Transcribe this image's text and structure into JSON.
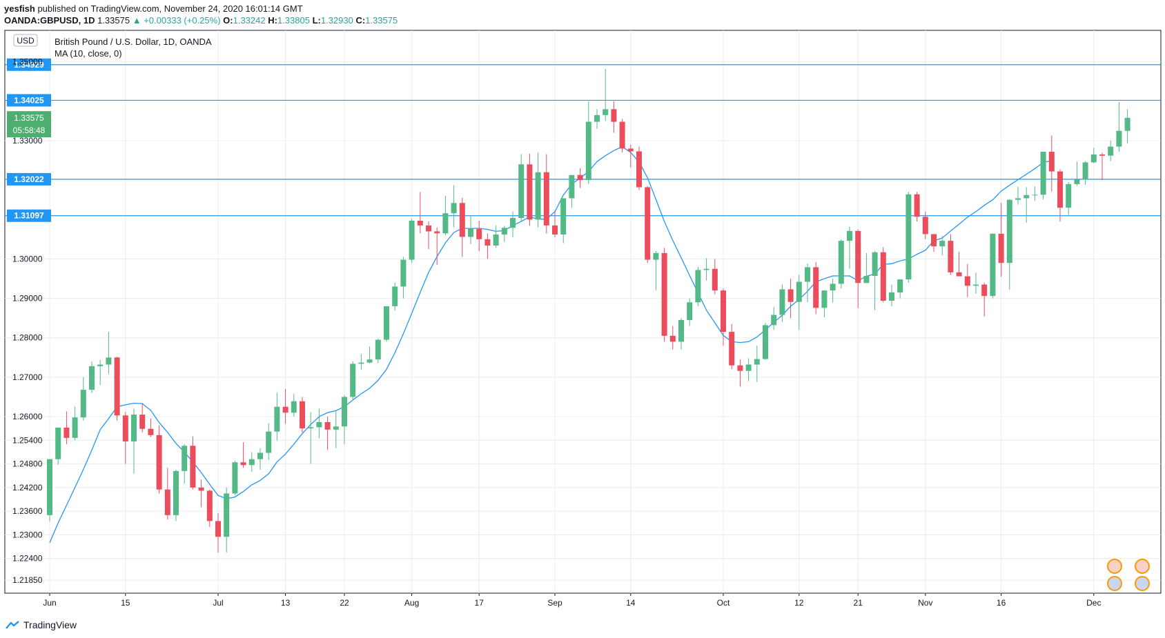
{
  "header": {
    "author": "yesfish",
    "published_text": "published on TradingView.com, November 24, 2020 16:01:14 GMT",
    "symbol_line": "OANDA:GBPUSD, 1D",
    "last": "1.33575",
    "change": "+0.00333 (+0.25%)",
    "open_label": "O:",
    "open": "1.33242",
    "high_label": "H:",
    "high": "1.33805",
    "low_label": "L:",
    "low": "1.32930",
    "close_label": "C:",
    "close": "1.33575"
  },
  "legend": {
    "currency": "USD",
    "title": "British Pound / U.S. Dollar, 1D, OANDA",
    "indicator": "MA (10, close, 0)"
  },
  "footer": {
    "brand": "TradingView"
  },
  "colors": {
    "up": "#26a69a",
    "up_candle": "#53b987",
    "down_candle": "#eb4d5c",
    "ma_line": "#2196f3",
    "hline": "#2196f3",
    "grid": "#e9ecef",
    "price_tag": "#2196f3",
    "last_tag": "#4caf6f"
  },
  "chart_data": {
    "type": "candlestick",
    "title": "British Pound / U.S. Dollar, 1D, OANDA",
    "ylim": [
      1.2152,
      1.358
    ],
    "y_ticks": [
      "1.30000",
      "1.29000",
      "1.28000",
      "1.27000",
      "1.26000",
      "1.25400",
      "1.24800",
      "1.24200",
      "1.23600",
      "1.23000",
      "1.22400",
      "1.21850"
    ],
    "y_tick_values": [
      1.3,
      1.29,
      1.28,
      1.27,
      1.26,
      1.254,
      1.248,
      1.242,
      1.236,
      1.23,
      1.224,
      1.2185
    ],
    "top_partial_tick": "1.35000",
    "partial_tick_value": 1.35,
    "axis_extra_ticks": [
      "1.33000"
    ],
    "axis_extra_values": [
      1.33
    ],
    "x_ticks": [
      "Jun",
      "15",
      "Jul",
      "13",
      "22",
      "Aug",
      "17",
      "Sep",
      "14",
      "Oct",
      "12",
      "21",
      "Nov",
      "16",
      "Dec"
    ],
    "x_tick_index": [
      0,
      9,
      20,
      28,
      35,
      43,
      51,
      60,
      69,
      80,
      89,
      96,
      104,
      113,
      124
    ],
    "horizontal_levels": [
      "1.34929",
      "1.34025",
      "1.32022",
      "1.31097"
    ],
    "horizontal_values": [
      1.34929,
      1.34025,
      1.32022,
      1.31097
    ],
    "last_price": "1.33575",
    "last_price_value": 1.33575,
    "countdown": "05:58:48",
    "grid": true,
    "candles": [
      [
        1.235,
        1.2492,
        1.2335,
        1.2492
      ],
      [
        1.2492,
        1.2572,
        1.2478,
        1.2572
      ],
      [
        1.2572,
        1.2613,
        1.253,
        1.2546
      ],
      [
        1.2546,
        1.2625,
        1.254,
        1.2598
      ],
      [
        1.2598,
        1.27,
        1.259,
        1.2668
      ],
      [
        1.2668,
        1.274,
        1.266,
        1.2728
      ],
      [
        1.2728,
        1.2744,
        1.268,
        1.2732
      ],
      [
        1.2732,
        1.2815,
        1.2708,
        1.275
      ],
      [
        1.275,
        1.2752,
        1.259,
        1.2603
      ],
      [
        1.2603,
        1.2612,
        1.248,
        1.2537
      ],
      [
        1.2537,
        1.262,
        1.2455,
        1.2605
      ],
      [
        1.2605,
        1.2634,
        1.256,
        1.2569
      ],
      [
        1.2569,
        1.2595,
        1.2548,
        1.2553
      ],
      [
        1.2553,
        1.2578,
        1.2405,
        1.2415
      ],
      [
        1.2415,
        1.247,
        1.2339,
        1.235
      ],
      [
        1.235,
        1.2465,
        1.2335,
        1.2462
      ],
      [
        1.2462,
        1.253,
        1.243,
        1.2526
      ],
      [
        1.2526,
        1.255,
        1.2415,
        1.242
      ],
      [
        1.242,
        1.244,
        1.237,
        1.2412
      ],
      [
        1.2412,
        1.2415,
        1.232,
        1.2335
      ],
      [
        1.2335,
        1.2355,
        1.2255,
        1.2295
      ],
      [
        1.2295,
        1.242,
        1.2255,
        1.2405
      ],
      [
        1.2405,
        1.2488,
        1.24,
        1.2484
      ],
      [
        1.2484,
        1.2535,
        1.247,
        1.2477
      ],
      [
        1.2477,
        1.251,
        1.246,
        1.2492
      ],
      [
        1.2492,
        1.252,
        1.2465,
        1.2508
      ],
      [
        1.2508,
        1.2583,
        1.249,
        1.2562
      ],
      [
        1.2562,
        1.266,
        1.254,
        1.2625
      ],
      [
        1.2625,
        1.267,
        1.2582,
        1.261
      ],
      [
        1.261,
        1.2658,
        1.26,
        1.2639
      ],
      [
        1.2639,
        1.265,
        1.256,
        1.257
      ],
      [
        1.257,
        1.2611,
        1.248,
        1.2573
      ],
      [
        1.2573,
        1.262,
        1.2545,
        1.2586
      ],
      [
        1.2586,
        1.26,
        1.2515,
        1.2567
      ],
      [
        1.2567,
        1.2615,
        1.252,
        1.2575
      ],
      [
        1.2575,
        1.2655,
        1.253,
        1.265
      ],
      [
        1.265,
        1.274,
        1.264,
        1.2734
      ],
      [
        1.2734,
        1.2758,
        1.2719,
        1.2737
      ],
      [
        1.2737,
        1.2778,
        1.2735,
        1.2745
      ],
      [
        1.2745,
        1.2798,
        1.2736,
        1.2795
      ],
      [
        1.2795,
        1.288,
        1.279,
        1.288
      ],
      [
        1.288,
        1.294,
        1.2869,
        1.293
      ],
      [
        1.293,
        1.3005,
        1.29,
        1.2998
      ],
      [
        1.2998,
        1.3102,
        1.299,
        1.3097
      ],
      [
        1.3097,
        1.317,
        1.3065,
        1.3085
      ],
      [
        1.3085,
        1.3095,
        1.3025,
        1.307
      ],
      [
        1.307,
        1.308,
        1.2985,
        1.3065
      ],
      [
        1.3065,
        1.316,
        1.306,
        1.3116
      ],
      [
        1.3116,
        1.3187,
        1.308,
        1.3142
      ],
      [
        1.3142,
        1.3155,
        1.3005,
        1.3056
      ],
      [
        1.3056,
        1.311,
        1.3038,
        1.3076
      ],
      [
        1.3076,
        1.3097,
        1.302,
        1.305
      ],
      [
        1.305,
        1.3065,
        1.3,
        1.3034
      ],
      [
        1.3034,
        1.3085,
        1.3028,
        1.3062
      ],
      [
        1.3062,
        1.3084,
        1.3043,
        1.3079
      ],
      [
        1.3079,
        1.312,
        1.3055,
        1.3104
      ],
      [
        1.3104,
        1.3266,
        1.3094,
        1.324
      ],
      [
        1.324,
        1.3267,
        1.3084,
        1.31
      ],
      [
        1.31,
        1.327,
        1.308,
        1.322
      ],
      [
        1.322,
        1.3266,
        1.3064,
        1.3085
      ],
      [
        1.3085,
        1.312,
        1.3055,
        1.3062
      ],
      [
        1.3062,
        1.3145,
        1.304,
        1.3154
      ],
      [
        1.3154,
        1.321,
        1.313,
        1.3213
      ],
      [
        1.3213,
        1.323,
        1.318,
        1.32
      ],
      [
        1.32,
        1.34,
        1.319,
        1.3348
      ],
      [
        1.3348,
        1.338,
        1.333,
        1.3365
      ],
      [
        1.3365,
        1.3482,
        1.335,
        1.338
      ],
      [
        1.338,
        1.34,
        1.332,
        1.3348
      ],
      [
        1.3348,
        1.3355,
        1.327,
        1.328
      ],
      [
        1.328,
        1.329,
        1.3232,
        1.3273
      ],
      [
        1.3273,
        1.3285,
        1.3175,
        1.3182
      ],
      [
        1.3182,
        1.3185,
        1.299,
        1.2998
      ],
      [
        1.2998,
        1.302,
        1.292,
        1.3015
      ],
      [
        1.3015,
        1.3028,
        1.279,
        1.2805
      ],
      [
        1.2805,
        1.283,
        1.277,
        1.279
      ],
      [
        1.279,
        1.285,
        1.277,
        1.2845
      ],
      [
        1.2845,
        1.29,
        1.283,
        1.289
      ],
      [
        1.289,
        1.298,
        1.288,
        1.2972
      ],
      [
        1.2972,
        1.3002,
        1.2945,
        1.2975
      ],
      [
        1.2975,
        1.3,
        1.291,
        1.292
      ],
      [
        1.292,
        1.2925,
        1.278,
        1.2815
      ],
      [
        1.2815,
        1.2835,
        1.272,
        1.273
      ],
      [
        1.273,
        1.2745,
        1.2676,
        1.2716
      ],
      [
        1.2716,
        1.2748,
        1.269,
        1.2732
      ],
      [
        1.2732,
        1.278,
        1.2688,
        1.2746
      ],
      [
        1.2746,
        1.2838,
        1.2744,
        1.2832
      ],
      [
        1.2832,
        1.2878,
        1.282,
        1.2858
      ],
      [
        1.2858,
        1.2935,
        1.284,
        1.2923
      ],
      [
        1.2923,
        1.295,
        1.285,
        1.2891
      ],
      [
        1.2891,
        1.296,
        1.282,
        1.2942
      ],
      [
        1.2942,
        1.2988,
        1.289,
        1.2979
      ],
      [
        1.2979,
        1.2992,
        1.286,
        1.2876
      ],
      [
        1.2876,
        1.292,
        1.2852,
        1.292
      ],
      [
        1.292,
        1.295,
        1.289,
        1.2937
      ],
      [
        1.2937,
        1.305,
        1.2925,
        1.3046
      ],
      [
        1.3046,
        1.3082,
        1.2975,
        1.3071
      ],
      [
        1.3071,
        1.3075,
        1.2875,
        1.2939
      ],
      [
        1.2939,
        1.3015,
        1.294,
        1.2957
      ],
      [
        1.2957,
        1.302,
        1.287,
        1.3017
      ],
      [
        1.3017,
        1.303,
        1.289,
        1.2894
      ],
      [
        1.2894,
        1.2935,
        1.288,
        1.2915
      ],
      [
        1.2915,
        1.2945,
        1.29,
        1.2948
      ],
      [
        1.2948,
        1.317,
        1.294,
        1.3164
      ],
      [
        1.3164,
        1.317,
        1.3095,
        1.3107
      ],
      [
        1.3107,
        1.312,
        1.305,
        1.3063
      ],
      [
        1.3063,
        1.3063,
        1.3018,
        1.3032
      ],
      [
        1.3032,
        1.3058,
        1.3009,
        1.3046
      ],
      [
        1.3046,
        1.3063,
        1.2959,
        1.2966
      ],
      [
        1.2966,
        1.3018,
        1.296,
        1.2956
      ],
      [
        1.2956,
        1.2987,
        1.2903,
        1.2932
      ],
      [
        1.2932,
        1.2965,
        1.2912,
        1.2935
      ],
      [
        1.2935,
        1.294,
        1.2854,
        1.2906
      ],
      [
        1.2906,
        1.3064,
        1.29,
        1.3064
      ],
      [
        1.3064,
        1.3142,
        1.2955,
        1.299
      ],
      [
        1.299,
        1.3152,
        1.2922,
        1.315
      ],
      [
        1.315,
        1.3183,
        1.3138,
        1.3154
      ],
      [
        1.3154,
        1.3182,
        1.3092,
        1.3162
      ],
      [
        1.3162,
        1.3184,
        1.3148,
        1.3163
      ],
      [
        1.3163,
        1.327,
        1.3151,
        1.3272
      ],
      [
        1.3272,
        1.3313,
        1.3171,
        1.3222
      ],
      [
        1.3222,
        1.3227,
        1.3095,
        1.313
      ],
      [
        1.313,
        1.3195,
        1.3112,
        1.319
      ],
      [
        1.319,
        1.3247,
        1.3185,
        1.3201
      ],
      [
        1.3201,
        1.3248,
        1.3188,
        1.3245
      ],
      [
        1.3245,
        1.3282,
        1.3243,
        1.3265
      ],
      [
        1.3265,
        1.327,
        1.32,
        1.3262
      ],
      [
        1.3262,
        1.33,
        1.3248,
        1.3285
      ],
      [
        1.3285,
        1.3398,
        1.3272,
        1.3325
      ],
      [
        1.3325,
        1.338,
        1.3293,
        1.3358
      ]
    ],
    "ma": [
      1.228,
      1.233,
      1.2375,
      1.242,
      1.2466,
      1.2515,
      1.2567,
      1.2595,
      1.2625,
      1.263,
      1.2634,
      1.2633,
      1.2616,
      1.2585,
      1.256,
      1.2532,
      1.251,
      1.2485,
      1.2458,
      1.2428,
      1.24,
      1.2392,
      1.2396,
      1.241,
      1.2427,
      1.2438,
      1.2455,
      1.2485,
      1.2505,
      1.253,
      1.2557,
      1.258,
      1.26,
      1.261,
      1.2615,
      1.2625,
      1.2642,
      1.2658,
      1.2672,
      1.2692,
      1.272,
      1.2762,
      1.281,
      1.2862,
      1.2915,
      1.2966,
      1.3006,
      1.3041,
      1.3067,
      1.3078,
      1.3077,
      1.3078,
      1.3075,
      1.307,
      1.3072,
      1.3085,
      1.3095,
      1.3107,
      1.3101,
      1.3101,
      1.312,
      1.3162,
      1.319,
      1.3205,
      1.3222,
      1.3247,
      1.3262,
      1.3275,
      1.3285,
      1.327,
      1.3246,
      1.3206,
      1.3151,
      1.3095,
      1.3047,
      1.3003,
      1.2958,
      1.2914,
      1.287,
      1.2838,
      1.2806,
      1.279,
      1.2788,
      1.279,
      1.2802,
      1.282,
      1.2839,
      1.2857,
      1.288,
      1.2897,
      1.2918,
      1.2942,
      1.295,
      1.2957,
      1.2957,
      1.2957,
      1.2945,
      1.2956,
      1.2962,
      1.2986,
      1.2988,
      1.2995,
      1.3,
      1.3012,
      1.3022,
      1.3046,
      1.3053,
      1.3071,
      1.3088,
      1.3106,
      1.312,
      1.3136,
      1.315,
      1.3172,
      1.3187,
      1.3201,
      1.3215,
      1.3229,
      1.3245,
      1.3249
    ]
  }
}
